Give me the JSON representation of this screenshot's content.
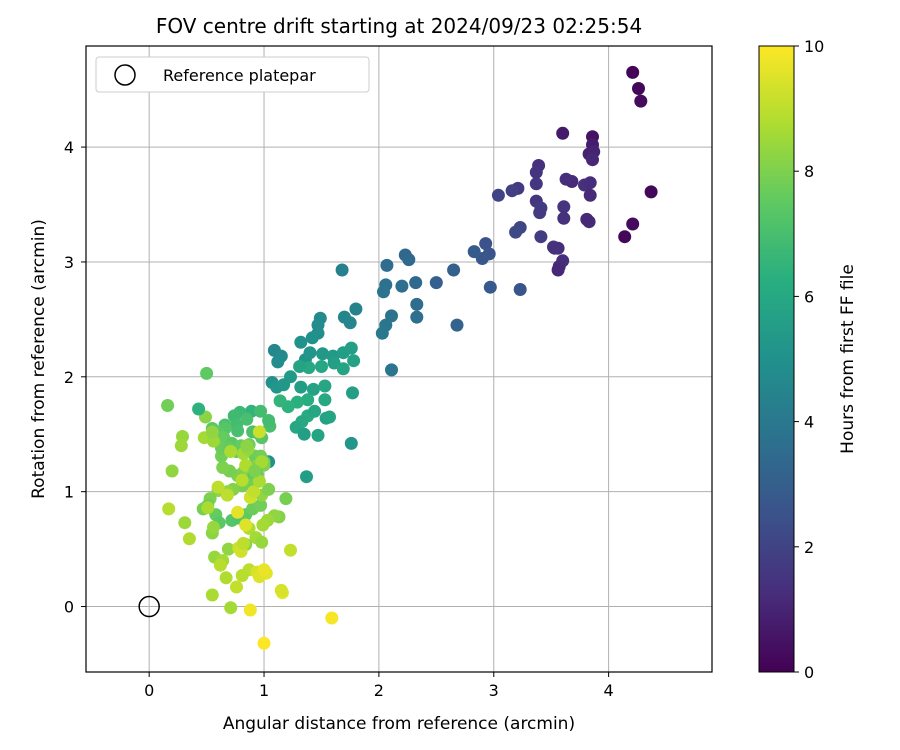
{
  "chart_data": {
    "type": "scatter",
    "title": "FOV centre drift starting at 2024/09/23 02:25:54",
    "xlabel": "Angular distance from reference (arcmin)",
    "ylabel": "Rotation from reference (arcmin)",
    "xlim": [
      -0.55,
      4.9
    ],
    "ylim": [
      -0.57,
      4.88
    ],
    "xticks": [
      0,
      1,
      2,
      3,
      4
    ],
    "yticks": [
      0,
      1,
      2,
      3,
      4
    ],
    "grid": true,
    "legend": {
      "placement": "top-left",
      "entries": [
        "Reference platepar"
      ]
    },
    "reference_point": {
      "x": 0,
      "y": 0,
      "marker": "open-circle",
      "color": "#000000"
    },
    "colorbar": {
      "label": "Hours from first FF file",
      "min": 0,
      "max": 10,
      "ticks": [
        0,
        2,
        4,
        6,
        8,
        10
      ],
      "colormap": "viridis",
      "stops": [
        "#440154",
        "#472d7b",
        "#3b528b",
        "#2c728e",
        "#21918c",
        "#28ae80",
        "#5ec962",
        "#addc30",
        "#fde725"
      ]
    },
    "series": [
      {
        "points": [
          [
            4.21,
            4.65,
            0.1
          ],
          [
            4.26,
            4.51,
            0.2
          ],
          [
            4.28,
            4.4,
            0.3
          ],
          [
            3.86,
            4.09,
            0.5
          ],
          [
            3.6,
            4.12,
            0.7
          ],
          [
            3.86,
            4.02,
            0.8
          ],
          [
            3.83,
            3.94,
            0.9
          ],
          [
            3.87,
            3.96,
            1.0
          ],
          [
            3.86,
            3.89,
            1.1
          ],
          [
            3.68,
            3.7,
            1.2
          ],
          [
            3.63,
            3.72,
            1.3
          ],
          [
            3.79,
            3.67,
            1.4
          ],
          [
            3.84,
            3.69,
            1.3
          ],
          [
            3.84,
            3.58,
            1.2
          ],
          [
            3.39,
            3.84,
            1.4
          ],
          [
            3.37,
            3.78,
            1.5
          ],
          [
            3.37,
            3.68,
            1.6
          ],
          [
            3.21,
            3.64,
            1.7
          ],
          [
            3.04,
            3.58,
            2.0
          ],
          [
            3.16,
            3.62,
            1.9
          ],
          [
            3.37,
            3.53,
            1.6
          ],
          [
            3.41,
            3.47,
            1.8
          ],
          [
            3.4,
            3.43,
            1.7
          ],
          [
            3.61,
            3.48,
            1.5
          ],
          [
            3.61,
            3.38,
            1.4
          ],
          [
            3.83,
            3.35,
            1.2
          ],
          [
            3.81,
            3.37,
            1.1
          ],
          [
            4.37,
            3.61,
            0.2
          ],
          [
            4.21,
            3.33,
            0.3
          ],
          [
            4.14,
            3.22,
            0.2
          ],
          [
            3.56,
            3.12,
            1.3
          ],
          [
            3.52,
            3.13,
            1.5
          ],
          [
            3.53,
            3.12,
            1.4
          ],
          [
            3.6,
            3.01,
            1.3
          ],
          [
            3.57,
            2.96,
            1.2
          ],
          [
            3.56,
            2.93,
            1.1
          ],
          [
            3.23,
            3.3,
            2.1
          ],
          [
            3.19,
            3.26,
            2.2
          ],
          [
            3.41,
            3.22,
            1.8
          ],
          [
            2.93,
            3.16,
            2.5
          ],
          [
            2.96,
            3.07,
            2.6
          ],
          [
            2.9,
            3.03,
            2.7
          ],
          [
            2.83,
            3.09,
            2.8
          ],
          [
            2.97,
            2.78,
            2.8
          ],
          [
            3.23,
            2.76,
            2.6
          ],
          [
            2.5,
            2.82,
            3.0
          ],
          [
            2.65,
            2.93,
            3.1
          ],
          [
            2.68,
            2.45,
            3.2
          ],
          [
            2.23,
            3.06,
            3.3
          ],
          [
            2.26,
            3.02,
            3.4
          ],
          [
            2.07,
            2.97,
            3.5
          ],
          [
            2.32,
            2.82,
            3.4
          ],
          [
            2.2,
            2.79,
            3.6
          ],
          [
            2.06,
            2.8,
            3.7
          ],
          [
            2.04,
            2.74,
            3.8
          ],
          [
            2.33,
            2.63,
            3.5
          ],
          [
            2.33,
            2.52,
            3.6
          ],
          [
            2.11,
            2.53,
            3.8
          ],
          [
            2.06,
            2.45,
            3.9
          ],
          [
            2.03,
            2.38,
            4.0
          ],
          [
            2.11,
            2.06,
            3.9
          ],
          [
            1.68,
            2.93,
            4.3
          ],
          [
            1.8,
            2.59,
            4.4
          ],
          [
            1.7,
            2.52,
            4.5
          ],
          [
            1.75,
            2.47,
            4.6
          ],
          [
            1.49,
            2.51,
            4.7
          ],
          [
            1.47,
            2.45,
            4.8
          ],
          [
            1.47,
            2.38,
            4.9
          ],
          [
            1.42,
            2.34,
            5.0
          ],
          [
            1.32,
            2.3,
            5.0
          ],
          [
            1.09,
            2.23,
            4.6
          ],
          [
            1.15,
            2.18,
            4.7
          ],
          [
            1.12,
            2.13,
            4.8
          ],
          [
            1.36,
            2.15,
            5.1
          ],
          [
            1.4,
            2.21,
            5.2
          ],
          [
            1.51,
            2.2,
            5.3
          ],
          [
            1.6,
            2.18,
            5.4
          ],
          [
            1.61,
            2.12,
            5.6
          ],
          [
            1.69,
            2.21,
            5.5
          ],
          [
            1.76,
            2.25,
            5.6
          ],
          [
            1.78,
            2.14,
            5.7
          ],
          [
            1.69,
            2.07,
            5.8
          ],
          [
            1.5,
            2.09,
            5.9
          ],
          [
            1.39,
            2.08,
            6.0
          ],
          [
            1.31,
            2.09,
            5.8
          ],
          [
            1.23,
            2.0,
            5.4
          ],
          [
            1.07,
            1.95,
            5.0
          ],
          [
            1.11,
            1.91,
            5.2
          ],
          [
            1.17,
            1.93,
            5.3
          ],
          [
            1.32,
            1.91,
            5.5
          ],
          [
            1.43,
            1.89,
            5.7
          ],
          [
            1.53,
            1.92,
            5.9
          ],
          [
            1.53,
            1.8,
            6.0
          ],
          [
            1.38,
            1.8,
            6.2
          ],
          [
            1.29,
            1.78,
            6.3
          ],
          [
            1.21,
            1.74,
            6.4
          ],
          [
            1.14,
            1.79,
            6.5
          ],
          [
            1.77,
            1.86,
            5.6
          ],
          [
            1.38,
            1.66,
            6.1
          ],
          [
            1.33,
            1.61,
            6.0
          ],
          [
            1.28,
            1.56,
            5.9
          ],
          [
            1.35,
            1.5,
            5.6
          ],
          [
            1.47,
            1.49,
            5.8
          ],
          [
            1.54,
            1.64,
            5.7
          ],
          [
            1.57,
            1.65,
            5.8
          ],
          [
            1.76,
            1.42,
            5.2
          ],
          [
            1.44,
            1.7,
            5.9
          ],
          [
            1.04,
            1.26,
            5.0
          ],
          [
            1.37,
            1.13,
            5.5
          ],
          [
            0.89,
            1.7,
            6.5
          ],
          [
            0.79,
            1.69,
            6.7
          ],
          [
            0.74,
            1.66,
            6.8
          ],
          [
            0.85,
            1.63,
            7.0
          ],
          [
            0.97,
            1.7,
            6.9
          ],
          [
            0.76,
            1.58,
            6.9
          ],
          [
            0.77,
            1.53,
            7.0
          ],
          [
            0.9,
            1.52,
            7.1
          ],
          [
            0.95,
            1.51,
            7.2
          ],
          [
            0.98,
            1.47,
            7.3
          ],
          [
            1.05,
            1.57,
            7.0
          ],
          [
            1.04,
            1.62,
            6.9
          ],
          [
            0.66,
            1.58,
            7.1
          ],
          [
            0.66,
            1.55,
            7.3
          ],
          [
            0.55,
            1.55,
            7.4
          ],
          [
            0.6,
            1.51,
            7.5
          ],
          [
            0.65,
            1.47,
            7.6
          ],
          [
            0.72,
            1.42,
            7.4
          ],
          [
            0.76,
            1.35,
            7.5
          ],
          [
            0.8,
            1.4,
            7.6
          ],
          [
            0.87,
            1.41,
            7.7
          ],
          [
            0.92,
            1.31,
            7.7
          ],
          [
            0.97,
            1.31,
            7.8
          ],
          [
            1.0,
            1.26,
            7.9
          ],
          [
            1.0,
            1.23,
            8.0
          ],
          [
            0.93,
            1.22,
            8.1
          ],
          [
            0.87,
            1.21,
            8.0
          ],
          [
            0.82,
            1.17,
            8.2
          ],
          [
            0.77,
            1.14,
            8.0
          ],
          [
            0.7,
            1.18,
            7.9
          ],
          [
            0.64,
            1.21,
            8.0
          ],
          [
            0.63,
            1.31,
            7.8
          ],
          [
            0.63,
            1.38,
            7.7
          ],
          [
            0.69,
            1.38,
            7.6
          ],
          [
            0.91,
            1.14,
            7.5
          ],
          [
            0.94,
            1.15,
            7.6
          ],
          [
            0.88,
            1.06,
            7.8
          ],
          [
            0.81,
            1.05,
            7.9
          ],
          [
            0.73,
            1.02,
            8.1
          ],
          [
            0.68,
            1.0,
            8.3
          ],
          [
            0.6,
            1.01,
            8.2
          ],
          [
            0.53,
            0.94,
            8.0
          ],
          [
            0.47,
            0.85,
            7.9
          ],
          [
            0.51,
            0.88,
            7.7
          ],
          [
            0.58,
            0.8,
            7.6
          ],
          [
            0.61,
            0.73,
            7.4
          ],
          [
            0.72,
            0.75,
            7.3
          ],
          [
            0.78,
            0.77,
            7.2
          ],
          [
            0.84,
            0.8,
            7.5
          ],
          [
            0.9,
            0.85,
            7.7
          ],
          [
            0.97,
            0.88,
            7.8
          ],
          [
            0.98,
            0.97,
            8.3
          ],
          [
            1.04,
            1.02,
            8.0
          ],
          [
            1.13,
            0.78,
            8.1
          ],
          [
            1.19,
            0.94,
            7.9
          ],
          [
            1.09,
            0.79,
            8.3
          ],
          [
            1.03,
            0.75,
            8.5
          ],
          [
            0.99,
            0.71,
            8.6
          ],
          [
            0.87,
            0.68,
            8.8
          ],
          [
            0.93,
            0.6,
            8.6
          ],
          [
            0.98,
            0.56,
            8.4
          ],
          [
            0.84,
            0.54,
            8.2
          ],
          [
            0.69,
            0.5,
            8.3
          ],
          [
            0.57,
            0.43,
            8.4
          ],
          [
            0.55,
            0.64,
            8.2
          ],
          [
            0.56,
            0.69,
            8.4
          ],
          [
            0.51,
            0.86,
            8.7
          ],
          [
            0.64,
            0.4,
            8.6
          ],
          [
            0.67,
            0.25,
            8.8
          ],
          [
            0.62,
            0.36,
            8.9
          ],
          [
            0.87,
            0.32,
            9.0
          ],
          [
            0.81,
            0.27,
            8.9
          ],
          [
            0.76,
            0.17,
            9.1
          ],
          [
            0.71,
            -0.01,
            8.6
          ],
          [
            0.55,
            0.1,
            8.7
          ],
          [
            0.78,
            0.51,
            9.2
          ],
          [
            0.8,
            0.48,
            9.3
          ],
          [
            0.82,
            0.55,
            9.0
          ],
          [
            0.94,
            0.3,
            9.4
          ],
          [
            0.96,
            0.26,
            9.5
          ],
          [
            1.02,
            0.29,
            9.6
          ],
          [
            1.0,
            0.32,
            9.7
          ],
          [
            1.16,
            0.12,
            9.6
          ],
          [
            1.15,
            0.14,
            9.4
          ],
          [
            1.23,
            0.49,
            9.1
          ],
          [
            0.88,
            -0.03,
            9.8
          ],
          [
            1.0,
            -0.32,
            10.0
          ],
          [
            1.59,
            -0.1,
            9.9
          ],
          [
            0.77,
            0.82,
            9.6
          ],
          [
            0.84,
            0.71,
            9.5
          ],
          [
            0.88,
            0.95,
            9.3
          ],
          [
            0.91,
            1.0,
            9.1
          ],
          [
            0.68,
            0.97,
            9.0
          ],
          [
            0.84,
            1.23,
            8.8
          ],
          [
            0.98,
            1.26,
            8.6
          ],
          [
            0.96,
            1.09,
            8.7
          ],
          [
            0.81,
            1.1,
            8.9
          ],
          [
            0.71,
            1.35,
            8.7
          ],
          [
            0.82,
            1.33,
            8.6
          ],
          [
            0.86,
            1.37,
            8.4
          ],
          [
            0.48,
            1.47,
            8.6
          ],
          [
            0.56,
            1.44,
            8.5
          ],
          [
            0.55,
            1.52,
            8.3
          ],
          [
            0.49,
            1.65,
            8.2
          ],
          [
            0.29,
            1.48,
            8.4
          ],
          [
            0.28,
            1.4,
            8.5
          ],
          [
            0.2,
            1.18,
            8.3
          ],
          [
            0.16,
            1.75,
            7.8
          ],
          [
            0.5,
            2.03,
            7.5
          ],
          [
            0.43,
            1.72,
            6.4
          ],
          [
            0.31,
            0.73,
            8.5
          ],
          [
            0.35,
            0.59,
            8.8
          ],
          [
            0.17,
            0.85,
            8.9
          ],
          [
            0.96,
            1.52,
            9.2
          ],
          [
            0.85,
            1.4,
            8.2
          ],
          [
            0.92,
            1.18,
            8.0
          ],
          [
            0.6,
            1.04,
            9.0
          ]
        ]
      }
    ]
  }
}
